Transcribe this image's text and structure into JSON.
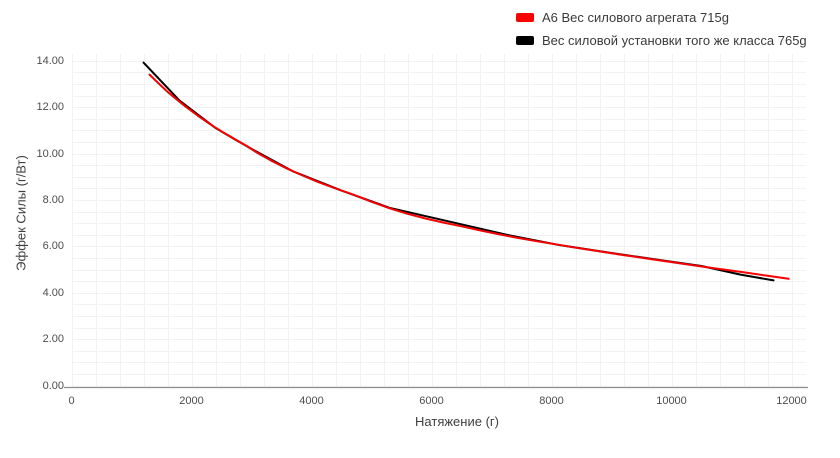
{
  "legend": {
    "items": [
      {
        "label": "A6 Вес силового агрегата 715g",
        "color": "#fa0000"
      },
      {
        "label": "Вес силовой установки того же класса 765g",
        "color": "#000000"
      }
    ]
  },
  "axes": {
    "x": {
      "label": "Натяжение (г)",
      "ticks": [
        "0",
        "2000",
        "4000",
        "6000",
        "8000",
        "10000",
        "12000"
      ],
      "min": 0,
      "max": 12000,
      "minor_step": 400
    },
    "y": {
      "label": "Эффек Силы (г/Вт)",
      "ticks": [
        "0.00",
        "2.00",
        "4.00",
        "6.00",
        "8.00",
        "10.00",
        "12.00",
        "14.00"
      ],
      "min": 0,
      "max": 14,
      "minor_step": 0.5
    }
  },
  "chart_data": {
    "type": "line",
    "title": "",
    "xlabel": "Натяжение (г)",
    "ylabel": "Эффек Силы (г/Вт)",
    "xlim": [
      0,
      12000
    ],
    "ylim": [
      0,
      14
    ],
    "grid": true,
    "legend_position": "top-right",
    "series": [
      {
        "name": "A6 Вес силового агрегата 715g",
        "color": "#fa0000",
        "points": [
          [
            1300,
            13.4
          ],
          [
            1450,
            13.02
          ],
          [
            1600,
            12.66
          ],
          [
            1750,
            12.33
          ],
          [
            1900,
            12.02
          ],
          [
            2100,
            11.64
          ],
          [
            2300,
            11.28
          ],
          [
            2500,
            10.95
          ],
          [
            2700,
            10.64
          ],
          [
            2900,
            10.35
          ],
          [
            3100,
            10.02
          ],
          [
            3350,
            9.66
          ],
          [
            3600,
            9.34
          ],
          [
            3850,
            9.05
          ],
          [
            4100,
            8.78
          ],
          [
            4400,
            8.49
          ],
          [
            4700,
            8.22
          ],
          [
            5000,
            7.92
          ],
          [
            5300,
            7.64
          ],
          [
            5600,
            7.4
          ],
          [
            5900,
            7.2
          ],
          [
            6200,
            7.02
          ],
          [
            6500,
            6.86
          ],
          [
            6800,
            6.69
          ],
          [
            7100,
            6.53
          ],
          [
            7400,
            6.38
          ],
          [
            7700,
            6.24
          ],
          [
            8000,
            6.11
          ],
          [
            8400,
            5.94
          ],
          [
            8800,
            5.78
          ],
          [
            9200,
            5.62
          ],
          [
            9600,
            5.47
          ],
          [
            10000,
            5.32
          ],
          [
            10400,
            5.17
          ],
          [
            10800,
            5.02
          ],
          [
            11200,
            4.88
          ],
          [
            11600,
            4.73
          ],
          [
            11950,
            4.6
          ]
        ]
      },
      {
        "name": "Вес силовой установки того же класса 765g",
        "color": "#000000",
        "points": [
          [
            1200,
            13.92
          ],
          [
            1800,
            12.28
          ],
          [
            2400,
            11.1
          ],
          [
            3000,
            10.2
          ],
          [
            3700,
            9.22
          ],
          [
            4500,
            8.4
          ],
          [
            5300,
            7.66
          ],
          [
            7300,
            6.47
          ],
          [
            8100,
            6.07
          ],
          [
            9000,
            5.71
          ],
          [
            9900,
            5.37
          ],
          [
            10500,
            5.15
          ],
          [
            11150,
            4.78
          ],
          [
            11700,
            4.53
          ]
        ]
      }
    ]
  },
  "colors": {
    "background": "#ffffff",
    "grid": "#f2f2f2",
    "axis_line": "#8f8f8f",
    "tick_text": "#4d4d4d",
    "axis_title_text": "#3f3f3f",
    "legend_text": "#3a3a3a"
  }
}
